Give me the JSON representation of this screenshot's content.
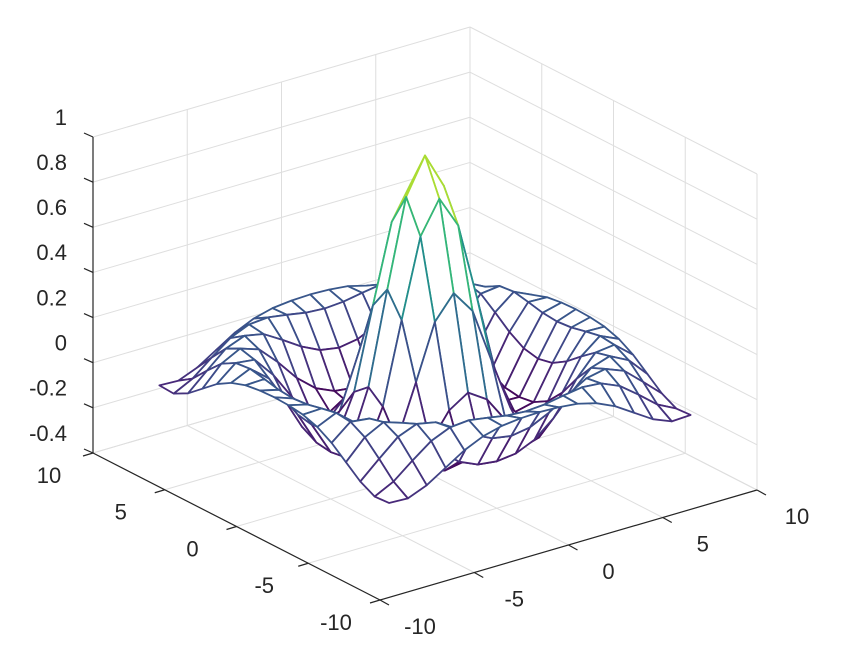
{
  "chart_data": {
    "type": "mesh",
    "colormap": "viridis",
    "grid": true,
    "x": [
      -8,
      -7,
      -6,
      -5,
      -4,
      -3,
      -2,
      -1,
      0,
      1,
      2,
      3,
      4,
      5,
      6,
      7,
      8
    ],
    "y": [
      -8,
      -7,
      -6,
      -5,
      -4,
      -3,
      -2,
      -1,
      0,
      1,
      2,
      3,
      4,
      5,
      6,
      7,
      8
    ],
    "z": [
      [
        -0.084,
        -0.088,
        -0.054,
        -0.001,
        0.052,
        0.09,
        0.112,
        0.121,
        0.124,
        0.121,
        0.112,
        0.09,
        0.052,
        -0.001,
        -0.054,
        -0.088,
        -0.084
      ],
      [
        -0.088,
        -0.046,
        0.022,
        0.085,
        0.121,
        0.128,
        0.115,
        0.1,
        0.094,
        0.1,
        0.115,
        0.128,
        0.121,
        0.085,
        0.022,
        -0.046,
        -0.088
      ],
      [
        -0.054,
        0.022,
        0.095,
        0.128,
        0.111,
        0.061,
        0.007,
        -0.033,
        -0.047,
        -0.033,
        0.007,
        0.061,
        0.111,
        0.128,
        0.095,
        0.022,
        -0.054
      ],
      [
        -0.001,
        0.085,
        0.128,
        0.1,
        0.019,
        -0.075,
        -0.145,
        -0.182,
        -0.192,
        -0.182,
        -0.145,
        -0.075,
        0.019,
        0.1,
        0.128,
        0.085,
        -0.001
      ],
      [
        0.052,
        0.121,
        0.111,
        0.019,
        -0.104,
        -0.192,
        -0.217,
        -0.202,
        -0.189,
        -0.202,
        -0.217,
        -0.192,
        -0.104,
        0.019,
        0.111,
        0.121,
        0.052
      ],
      [
        0.09,
        0.128,
        0.061,
        -0.075,
        -0.192,
        -0.21,
        -0.124,
        -0.007,
        0.047,
        -0.007,
        -0.124,
        -0.21,
        -0.192,
        -0.075,
        0.061,
        0.128,
        0.09
      ],
      [
        0.112,
        0.115,
        0.007,
        -0.145,
        -0.217,
        -0.124,
        0.109,
        0.352,
        0.455,
        0.352,
        0.109,
        -0.124,
        -0.217,
        -0.145,
        0.007,
        0.115,
        0.112
      ],
      [
        0.121,
        0.1,
        -0.033,
        -0.182,
        -0.202,
        -0.007,
        0.352,
        0.698,
        0.841,
        0.698,
        0.352,
        -0.007,
        -0.202,
        -0.182,
        -0.033,
        0.1,
        0.121
      ],
      [
        0.124,
        0.094,
        -0.047,
        -0.192,
        -0.189,
        0.047,
        0.455,
        0.841,
        1,
        0.841,
        0.455,
        0.047,
        -0.189,
        -0.192,
        -0.047,
        0.094,
        0.124
      ],
      [
        0.121,
        0.1,
        -0.033,
        -0.182,
        -0.202,
        -0.007,
        0.352,
        0.698,
        0.841,
        0.698,
        0.352,
        -0.007,
        -0.202,
        -0.182,
        -0.033,
        0.1,
        0.121
      ],
      [
        0.112,
        0.115,
        0.007,
        -0.145,
        -0.217,
        -0.124,
        0.109,
        0.352,
        0.455,
        0.352,
        0.109,
        -0.124,
        -0.217,
        -0.145,
        0.007,
        0.115,
        0.112
      ],
      [
        0.09,
        0.128,
        0.061,
        -0.075,
        -0.192,
        -0.21,
        -0.124,
        -0.007,
        0.047,
        -0.007,
        -0.124,
        -0.21,
        -0.192,
        -0.075,
        0.061,
        0.128,
        0.09
      ],
      [
        0.052,
        0.121,
        0.111,
        0.019,
        -0.104,
        -0.192,
        -0.217,
        -0.202,
        -0.189,
        -0.202,
        -0.217,
        -0.192,
        -0.104,
        0.019,
        0.111,
        0.121,
        0.052
      ],
      [
        -0.001,
        0.085,
        0.128,
        0.1,
        0.019,
        -0.075,
        -0.145,
        -0.182,
        -0.192,
        -0.182,
        -0.145,
        -0.075,
        0.019,
        0.1,
        0.128,
        0.085,
        -0.001
      ],
      [
        -0.054,
        0.022,
        0.095,
        0.128,
        0.111,
        0.061,
        0.007,
        -0.033,
        -0.047,
        -0.033,
        0.007,
        0.061,
        0.111,
        0.128,
        0.095,
        0.022,
        -0.054
      ],
      [
        -0.088,
        -0.046,
        0.022,
        0.085,
        0.121,
        0.128,
        0.115,
        0.1,
        0.094,
        0.1,
        0.115,
        0.128,
        0.121,
        0.085,
        0.022,
        -0.046,
        -0.088
      ],
      [
        -0.084,
        -0.088,
        -0.054,
        -0.001,
        0.052,
        0.09,
        0.112,
        0.121,
        0.124,
        0.121,
        0.112,
        0.09,
        0.052,
        -0.001,
        -0.054,
        -0.088,
        -0.084
      ]
    ],
    "xlim": [
      -10,
      10
    ],
    "xticks": [
      -10,
      -5,
      0,
      5,
      10
    ],
    "ylim": [
      -10,
      10
    ],
    "yticks": [
      -10,
      -5,
      0,
      5,
      10
    ],
    "zlim": [
      -0.4,
      1
    ],
    "zticks": [
      -0.4,
      -0.2,
      0,
      0.2,
      0.4,
      0.6,
      0.8,
      1
    ]
  }
}
